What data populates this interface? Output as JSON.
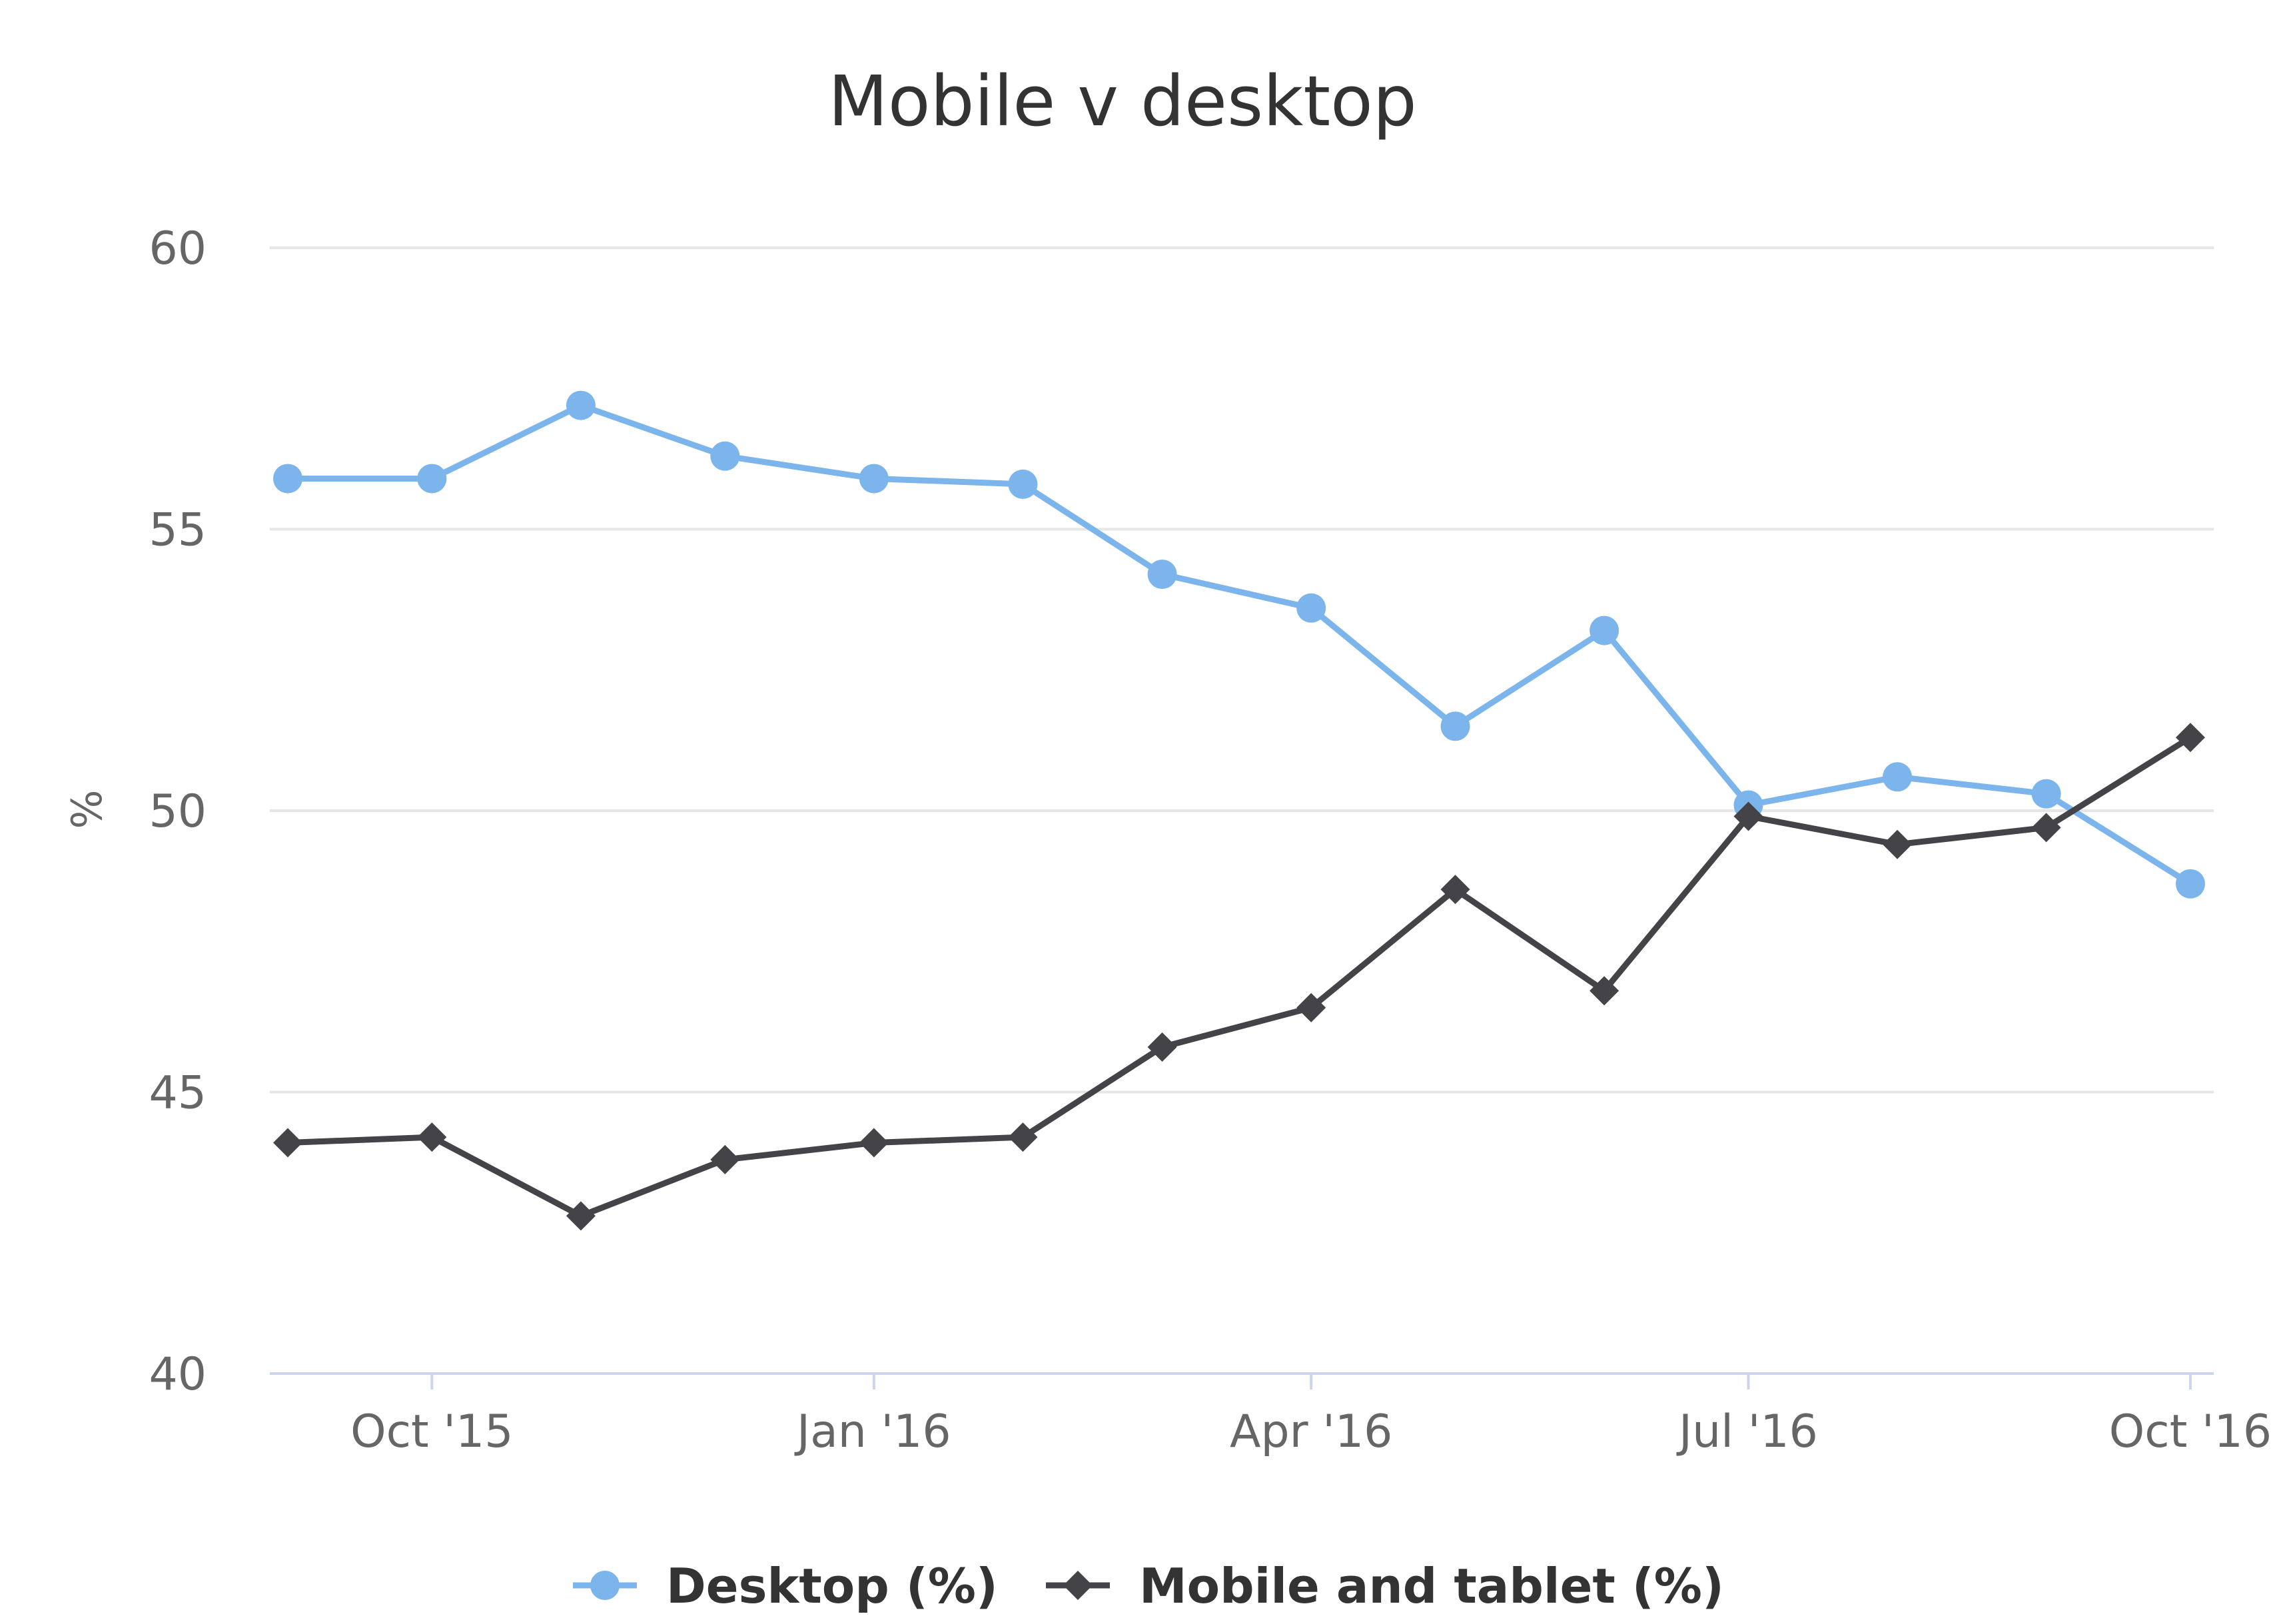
{
  "chart_data": {
    "type": "line",
    "title": "Mobile v desktop",
    "ylabel": "%",
    "xlabel": "",
    "ylim": [
      40,
      60
    ],
    "yticks": [
      40,
      45,
      50,
      55,
      60
    ],
    "grid": true,
    "legend_position": "bottom-center",
    "x": [
      "2015-09-01",
      "2015-10-01",
      "2015-11-01",
      "2015-12-01",
      "2016-01-01",
      "2016-02-01",
      "2016-03-01",
      "2016-04-01",
      "2016-05-01",
      "2016-06-01",
      "2016-07-01",
      "2016-08-01",
      "2016-09-01",
      "2016-10-01"
    ],
    "xticks": [
      {
        "date": "2015-10-01",
        "label": "Oct '15"
      },
      {
        "date": "2016-01-01",
        "label": "Jan '16"
      },
      {
        "date": "2016-04-01",
        "label": "Apr '16"
      },
      {
        "date": "2016-07-01",
        "label": "Jul '16"
      },
      {
        "date": "2016-10-01",
        "label": "Oct '16"
      }
    ],
    "series": [
      {
        "name": "Desktop (%)",
        "color": "#7cb5ec",
        "marker": "circle",
        "values": [
          55.9,
          55.9,
          57.2,
          56.3,
          55.9,
          55.8,
          54.2,
          53.6,
          51.5,
          53.2,
          50.1,
          50.6,
          50.3,
          48.7
        ]
      },
      {
        "name": "Mobile and tablet (%)",
        "color": "#434348",
        "marker": "diamond",
        "values": [
          44.1,
          44.2,
          42.8,
          43.8,
          44.1,
          44.2,
          45.8,
          46.5,
          48.6,
          46.8,
          49.9,
          49.4,
          49.7,
          51.3
        ]
      }
    ]
  }
}
